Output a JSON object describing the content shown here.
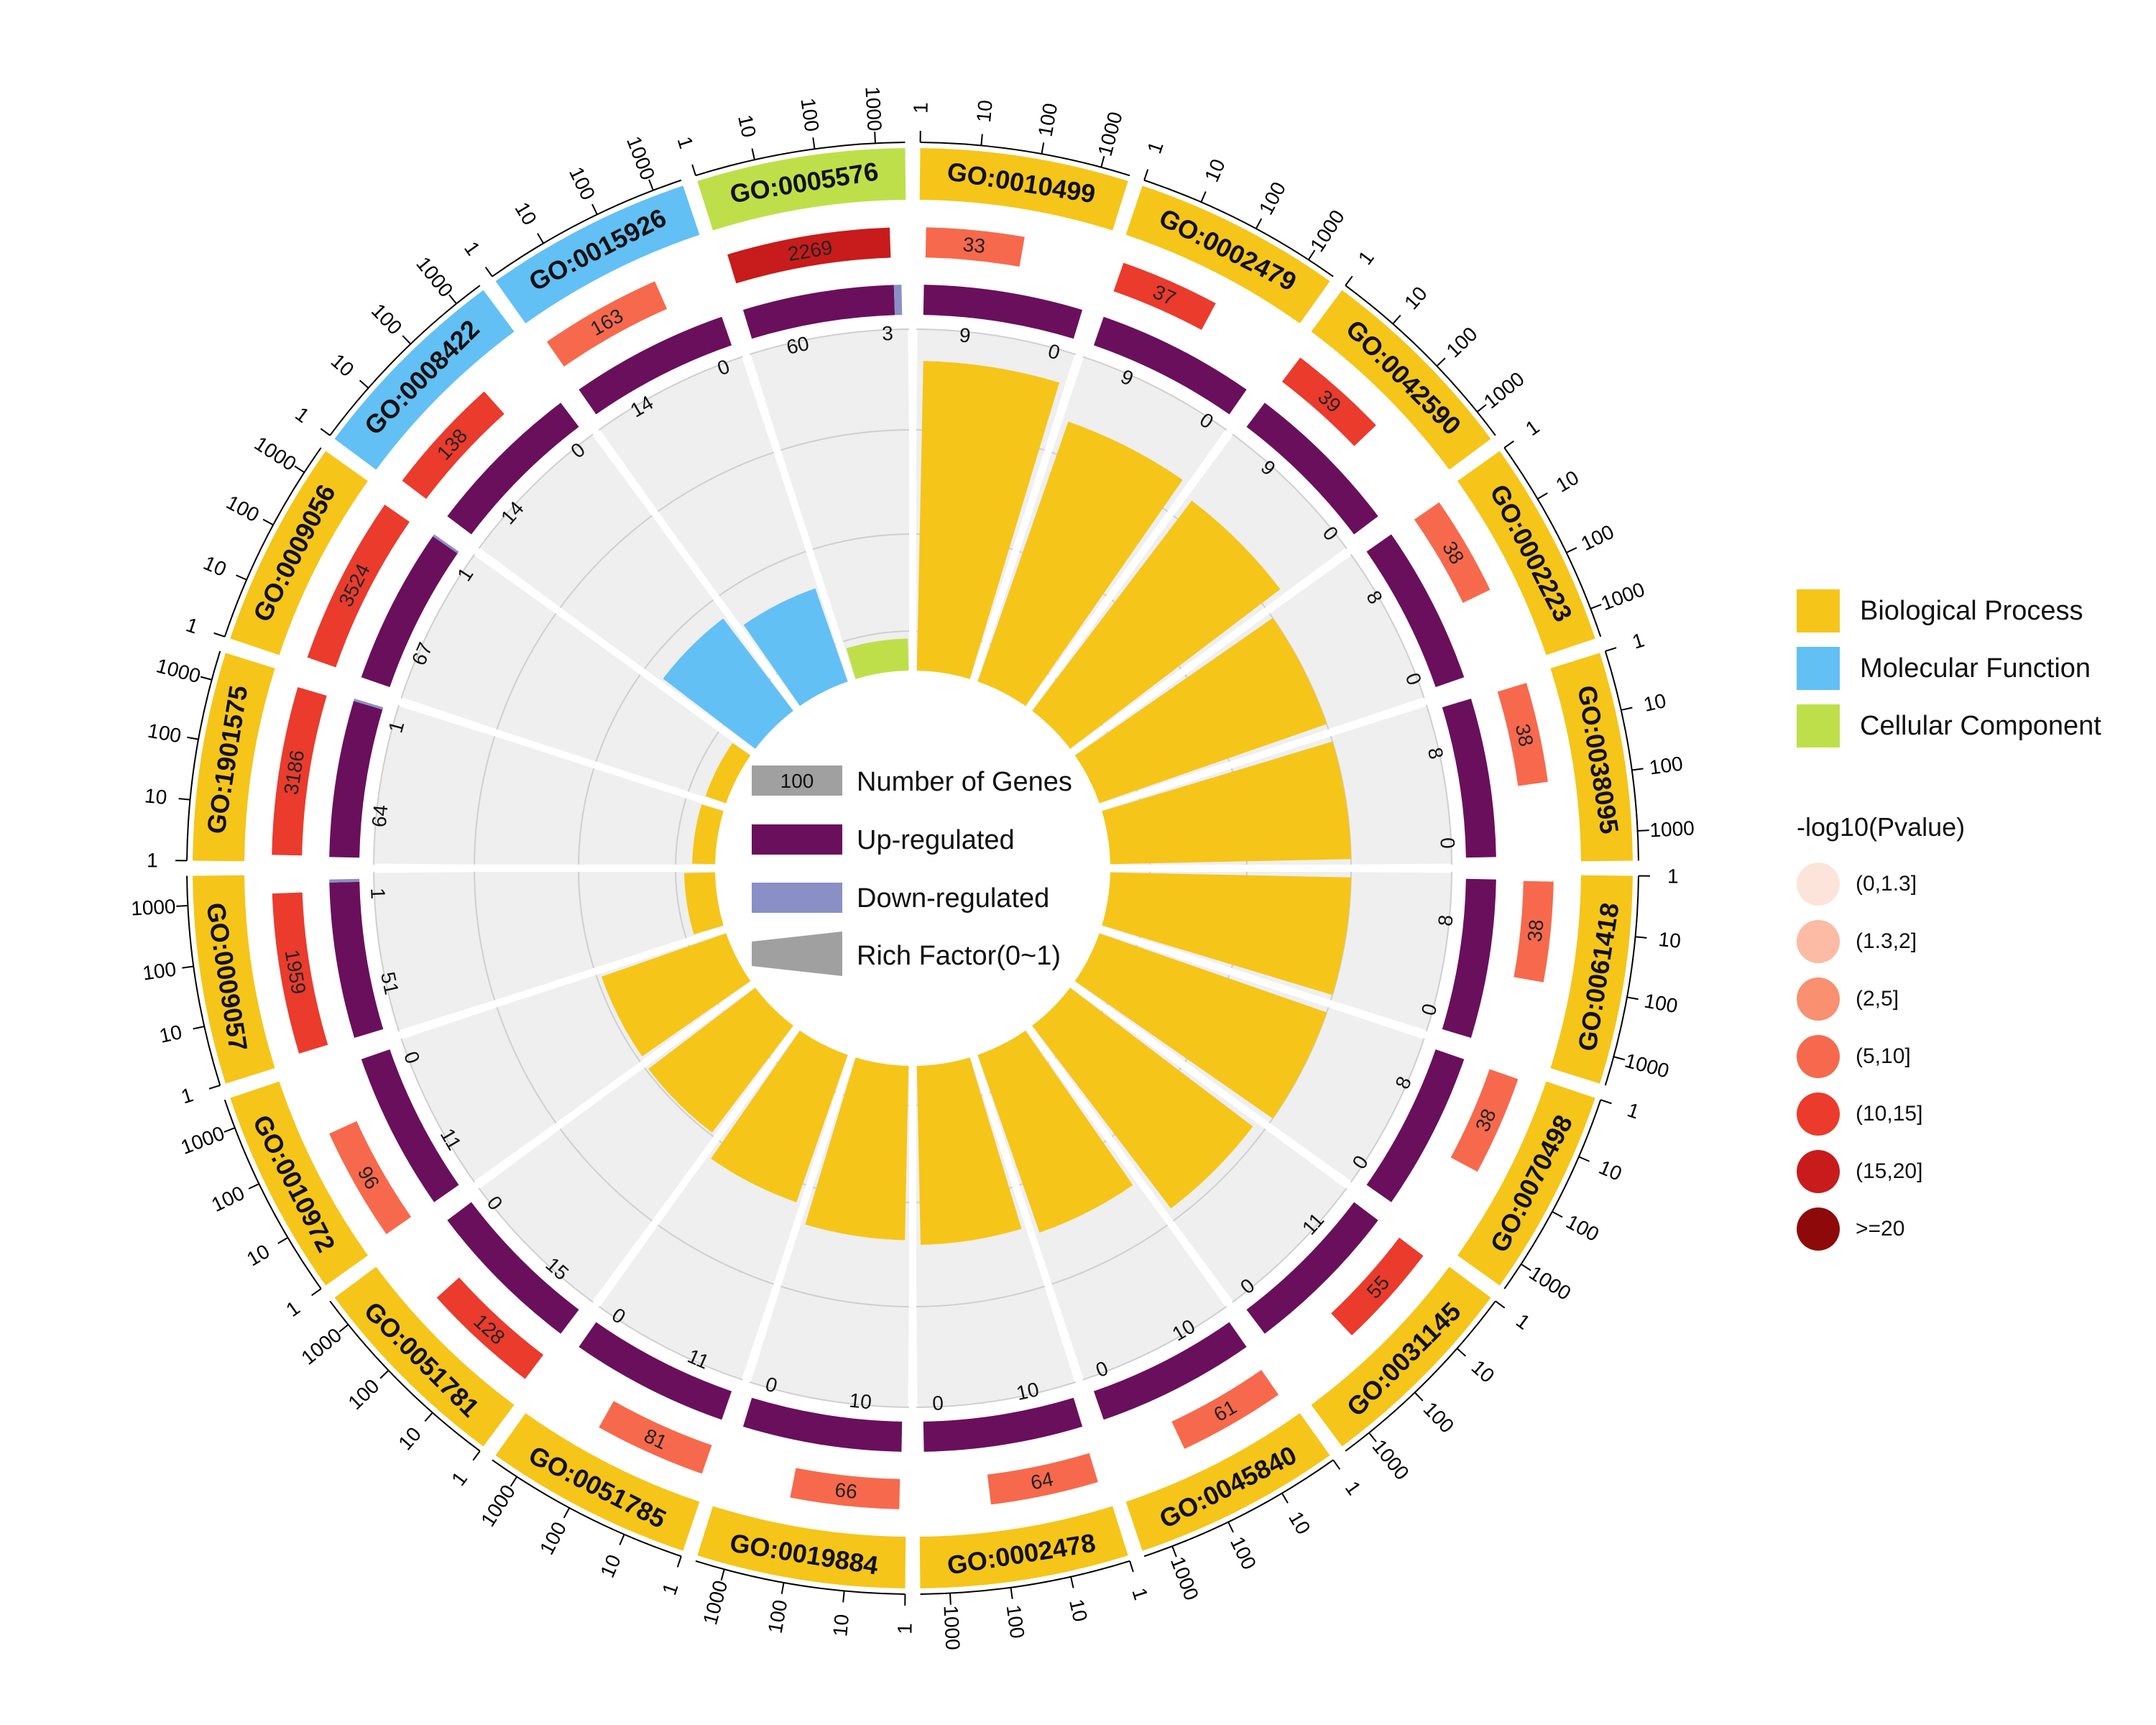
{
  "chart_data": {
    "type": "circular-go-enrichment",
    "axis_ticks": [
      "1",
      "10",
      "100",
      "1000"
    ],
    "categories": [
      {
        "id": "GO:0010499",
        "ontology": "BP",
        "background_genes": 33,
        "pvalue_bin": "(5,10]",
        "up": 9,
        "down": 0,
        "rich_factor": 0.27
      },
      {
        "id": "GO:0002479",
        "ontology": "BP",
        "background_genes": 37,
        "pvalue_bin": "(10,15]",
        "up": 9,
        "down": 0,
        "rich_factor": 0.24
      },
      {
        "id": "GO:0042590",
        "ontology": "BP",
        "background_genes": 39,
        "pvalue_bin": "(10,15]",
        "up": 9,
        "down": 0,
        "rich_factor": 0.23
      },
      {
        "id": "GO:0002223",
        "ontology": "BP",
        "background_genes": 38,
        "pvalue_bin": "(5,10]",
        "up": 8,
        "down": 0,
        "rich_factor": 0.21
      },
      {
        "id": "GO:0038095",
        "ontology": "BP",
        "background_genes": 38,
        "pvalue_bin": "(5,10]",
        "up": 8,
        "down": 0,
        "rich_factor": 0.21
      },
      {
        "id": "GO:0061418",
        "ontology": "BP",
        "background_genes": 38,
        "pvalue_bin": "(5,10]",
        "up": 8,
        "down": 0,
        "rich_factor": 0.21
      },
      {
        "id": "GO:0070498",
        "ontology": "BP",
        "background_genes": 38,
        "pvalue_bin": "(5,10]",
        "up": 8,
        "down": 0,
        "rich_factor": 0.21
      },
      {
        "id": "GO:0031145",
        "ontology": "BP",
        "background_genes": 55,
        "pvalue_bin": "(10,15]",
        "up": 11,
        "down": 0,
        "rich_factor": 0.2
      },
      {
        "id": "GO:0045840",
        "ontology": "BP",
        "background_genes": 61,
        "pvalue_bin": "(5,10]",
        "up": 10,
        "down": 0,
        "rich_factor": 0.164
      },
      {
        "id": "GO:0002478",
        "ontology": "BP",
        "background_genes": 64,
        "pvalue_bin": "(5,10]",
        "up": 10,
        "down": 0,
        "rich_factor": 0.156
      },
      {
        "id": "GO:0019884",
        "ontology": "BP",
        "background_genes": 66,
        "pvalue_bin": "(5,10]",
        "up": 10,
        "down": 0,
        "rich_factor": 0.152
      },
      {
        "id": "GO:0051785",
        "ontology": "BP",
        "background_genes": 81,
        "pvalue_bin": "(5,10]",
        "up": 11,
        "down": 0,
        "rich_factor": 0.136
      },
      {
        "id": "GO:0051781",
        "ontology": "BP",
        "background_genes": 128,
        "pvalue_bin": "(10,15]",
        "up": 15,
        "down": 0,
        "rich_factor": 0.117
      },
      {
        "id": "GO:0010972",
        "ontology": "BP",
        "background_genes": 96,
        "pvalue_bin": "(5,10]",
        "up": 11,
        "down": 0,
        "rich_factor": 0.115
      },
      {
        "id": "GO:0009057",
        "ontology": "BP",
        "background_genes": 1959,
        "pvalue_bin": "(10,15]",
        "up": 51,
        "down": 1,
        "rich_factor": 0.027
      },
      {
        "id": "GO:1901575",
        "ontology": "BP",
        "background_genes": 3186,
        "pvalue_bin": "(10,15]",
        "up": 64,
        "down": 1,
        "rich_factor": 0.02
      },
      {
        "id": "GO:0009056",
        "ontology": "BP",
        "background_genes": 3524,
        "pvalue_bin": "(10,15]",
        "up": 67,
        "down": 1,
        "rich_factor": 0.019
      },
      {
        "id": "GO:0008422",
        "ontology": "MF",
        "background_genes": 138,
        "pvalue_bin": "(10,15]",
        "up": 14,
        "down": 0,
        "rich_factor": 0.101
      },
      {
        "id": "GO:0015926",
        "ontology": "MF",
        "background_genes": 163,
        "pvalue_bin": "(5,10]",
        "up": 14,
        "down": 0,
        "rich_factor": 0.086
      },
      {
        "id": "GO:0005576",
        "ontology": "CC",
        "background_genes": 2269,
        "pvalue_bin": "(15,20]",
        "up": 60,
        "down": 3,
        "rich_factor": 0.028
      }
    ]
  },
  "colors": {
    "BP": "#f5c51a",
    "MF": "#62c0f5",
    "CC": "#bfdf4a",
    "up": "#6a0f5c",
    "down": "#8a8fc6",
    "background": "#efefef",
    "genes_swatch": "#a0a0a0",
    "pvalue": {
      "(0,1.3]": "#fde4da",
      "(1.3,2]": "#fbbba4",
      "(2,5]": "#f9906f",
      "(5,10]": "#f7694c",
      "(10,15]": "#ea3b2d",
      "(15,20]": "#c81b1b",
      ">=20": "#8e0a0a"
    }
  },
  "inner_legend": {
    "genes_value": "100",
    "genes_label": "Number of Genes",
    "up_label": "Up-regulated",
    "down_label": "Down-regulated",
    "rich_label": "Rich Factor(0~1)"
  },
  "legend": {
    "ontologies": [
      {
        "key": "BP",
        "label": "Biological Process"
      },
      {
        "key": "MF",
        "label": "Molecular Function"
      },
      {
        "key": "CC",
        "label": "Cellular Component"
      }
    ],
    "pvalue_title": "-log10(Pvalue)",
    "pvalue_bins": [
      "(0,1.3]",
      "(1.3,2]",
      "(2,5]",
      "(5,10]",
      "(10,15]",
      "(15,20]",
      ">=20"
    ]
  }
}
